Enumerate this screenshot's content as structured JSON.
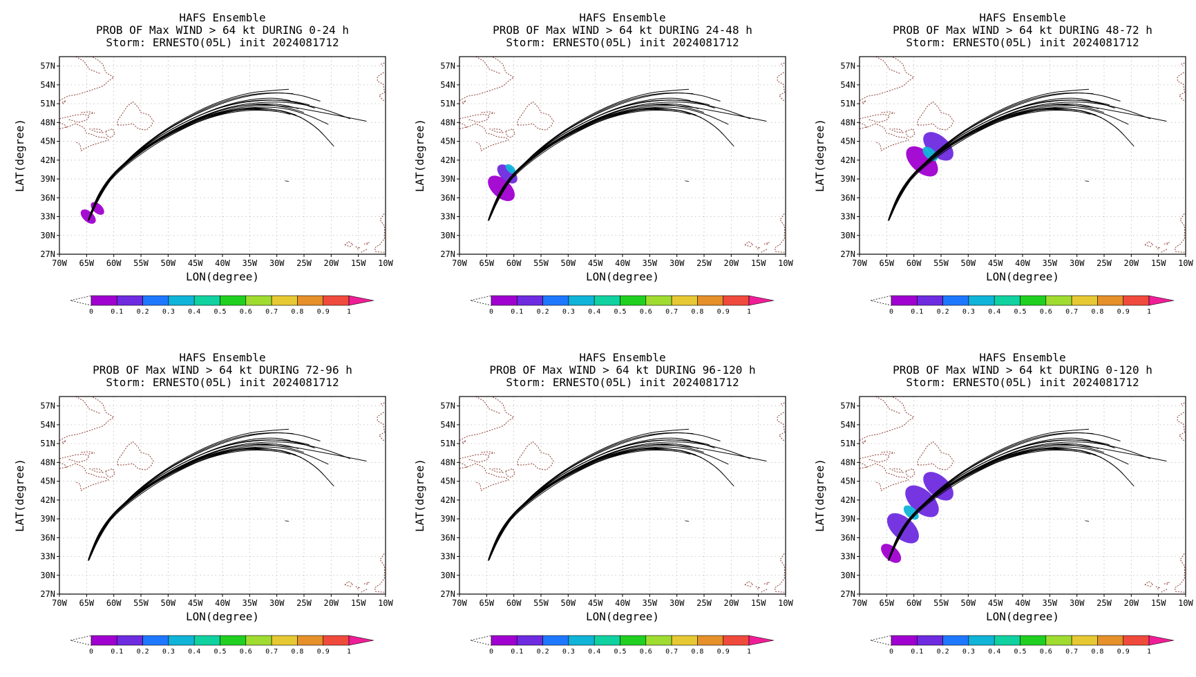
{
  "figure": {
    "ensemble_title": "HAFS Ensemble",
    "storm_line": "Storm: ERNESTO(05L) init 2024081712",
    "xlabel": "LON(degree)",
    "ylabel": "LAT(degree)",
    "lon_ticks": [
      "70W",
      "65W",
      "60W",
      "55W",
      "50W",
      "45W",
      "40W",
      "35W",
      "30W",
      "25W",
      "20W",
      "15W",
      "10W"
    ],
    "lat_ticks": [
      "27N",
      "30N",
      "33N",
      "36N",
      "39N",
      "42N",
      "45N",
      "48N",
      "51N",
      "54N",
      "57N"
    ],
    "colorbar": {
      "labels": [
        "0",
        "0.1",
        "0.2",
        "0.3",
        "0.4",
        "0.5",
        "0.6",
        "0.7",
        "0.8",
        "0.9",
        "1"
      ],
      "colors": [
        "#a000d0",
        "#6e2be0",
        "#1e78ff",
        "#10b4d8",
        "#10d2a0",
        "#20d020",
        "#a0dc30",
        "#e6c832",
        "#e6902a",
        "#f04a3c",
        "#f01e96"
      ]
    },
    "coastline_color": "#8b3a2e",
    "track_color": "#000000"
  },
  "panels": [
    {
      "id": "p0-24",
      "line2": "PROB OF Max WIND > 64 kt DURING  0-24 h",
      "prob_clusters": [
        {
          "lon": -64.7,
          "lat": 33.0,
          "value": 0.05,
          "r": 0.9
        },
        {
          "lon": -63.0,
          "lat": 34.3,
          "value": 0.05,
          "r": 0.8
        }
      ]
    },
    {
      "id": "p24-48",
      "line2": "PROB OF Max WIND > 64 kt DURING 24-48 h",
      "prob_clusters": [
        {
          "lon": -62.3,
          "lat": 37.5,
          "value": 0.05,
          "r": 1.6
        },
        {
          "lon": -61.2,
          "lat": 39.8,
          "value": 0.15,
          "r": 1.2
        },
        {
          "lon": -60.6,
          "lat": 40.6,
          "value": 0.35,
          "r": 0.6
        }
      ]
    },
    {
      "id": "p48-72",
      "line2": "PROB OF Max WIND > 64 kt DURING 48-72 h",
      "prob_clusters": [
        {
          "lon": -58.5,
          "lat": 41.8,
          "value": 0.05,
          "r": 1.9
        },
        {
          "lon": -55.5,
          "lat": 44.2,
          "value": 0.1,
          "r": 1.8
        },
        {
          "lon": -57.0,
          "lat": 43.0,
          "value": 0.35,
          "r": 0.9
        }
      ]
    },
    {
      "id": "p72-96",
      "line2": "PROB OF Max WIND > 64 kt DURING 72-96 h",
      "prob_clusters": []
    },
    {
      "id": "p96-120",
      "line2": "PROB OF Max WIND > 64 kt DURING 96-120 h",
      "prob_clusters": []
    },
    {
      "id": "p0-120",
      "line2": "PROB OF Max WIND > 64 kt DURING 0-120 h",
      "prob_clusters": [
        {
          "lon": -64.2,
          "lat": 33.5,
          "value": 0.05,
          "r": 1.2
        },
        {
          "lon": -62.0,
          "lat": 37.5,
          "value": 0.1,
          "r": 1.9
        },
        {
          "lon": -58.5,
          "lat": 41.8,
          "value": 0.15,
          "r": 2.0
        },
        {
          "lon": -55.5,
          "lat": 44.2,
          "value": 0.1,
          "r": 1.8
        },
        {
          "lon": -60.5,
          "lat": 40.0,
          "value": 0.35,
          "r": 0.9
        }
      ]
    }
  ],
  "track_ensemble": {
    "members": [
      {
        "lon": [
          -64.6,
          -63.8,
          -62.4,
          -60.0,
          -56.0,
          -51.0,
          -45.0,
          -39.0,
          -33.0,
          -27.8,
          -23.0,
          -19.5
        ],
        "lat": [
          32.4,
          34.3,
          36.8,
          39.5,
          42.4,
          45.3,
          48.0,
          49.8,
          50.3,
          49.8,
          47.6,
          44.2
        ]
      },
      {
        "lon": [
          -64.6,
          -63.9,
          -62.6,
          -60.3,
          -56.4,
          -51.4,
          -45.5,
          -39.5,
          -33.5,
          -28.0,
          -21.0,
          -13.5
        ],
        "lat": [
          32.4,
          34.4,
          37.0,
          39.8,
          42.8,
          45.7,
          48.3,
          50.0,
          50.8,
          50.6,
          49.5,
          48.2
        ]
      },
      {
        "lon": [
          -64.5,
          -63.6,
          -62.0,
          -59.5,
          -55.5,
          -50.5,
          -44.5,
          -38.5,
          -32.5,
          -27.0,
          -21.5,
          -16.5
        ],
        "lat": [
          32.6,
          34.6,
          37.3,
          40.2,
          43.2,
          46.2,
          48.8,
          50.6,
          51.3,
          51.2,
          50.2,
          48.6
        ]
      },
      {
        "lon": [
          -64.7,
          -64.0,
          -62.8,
          -60.6,
          -56.8,
          -52.0,
          -46.0,
          -40.0,
          -34.0,
          -29.0,
          -24.5,
          -20.5
        ],
        "lat": [
          32.5,
          34.2,
          36.6,
          39.3,
          42.2,
          45.2,
          47.9,
          49.8,
          50.5,
          50.4,
          49.3,
          47.7
        ]
      },
      {
        "lon": [
          -64.6,
          -63.7,
          -62.2,
          -59.8,
          -55.8,
          -50.8,
          -44.8,
          -38.8,
          -33.0,
          -28.5,
          -25.0
        ],
        "lat": [
          32.5,
          34.5,
          37.2,
          40.0,
          43.0,
          46.0,
          48.6,
          50.4,
          51.0,
          50.5,
          49.6
        ]
      },
      {
        "lon": [
          -64.5,
          -63.5,
          -61.8,
          -59.2,
          -55.0,
          -49.8,
          -43.5,
          -37.5,
          -31.5,
          -26.5,
          -23.0
        ],
        "lat": [
          32.6,
          34.8,
          37.6,
          40.6,
          43.8,
          46.8,
          49.5,
          51.2,
          51.7,
          51.3,
          50.3
        ]
      },
      {
        "lon": [
          -64.6,
          -63.8,
          -62.5,
          -60.2,
          -56.3,
          -51.5,
          -45.5,
          -39.5,
          -34.0,
          -29.5,
          -25.5
        ],
        "lat": [
          32.4,
          34.4,
          36.9,
          39.7,
          42.7,
          45.6,
          48.2,
          49.9,
          50.4,
          50.0,
          48.8
        ]
      },
      {
        "lon": [
          -64.7,
          -64.0,
          -62.9,
          -60.8,
          -57.2,
          -52.5,
          -46.5,
          -40.5,
          -35.0,
          -30.0,
          -26.5
        ],
        "lat": [
          32.3,
          34.0,
          36.4,
          39.0,
          41.8,
          44.8,
          47.6,
          49.5,
          50.3,
          50.1,
          49.2
        ]
      },
      {
        "lon": [
          -64.5,
          -63.4,
          -61.6,
          -58.8,
          -54.5,
          -49.0,
          -42.5,
          -36.5,
          -31.0,
          -27.5
        ],
        "lat": [
          32.7,
          35.0,
          37.9,
          41.0,
          44.2,
          47.2,
          49.9,
          51.5,
          52.0,
          51.5
        ]
      },
      {
        "lon": [
          -64.4,
          -63.3,
          -61.4,
          -58.5,
          -54.0,
          -48.5,
          -42.0,
          -36.0,
          -30.5,
          -26.0,
          -22.0
        ],
        "lat": [
          32.8,
          35.1,
          38.1,
          41.3,
          44.6,
          47.8,
          50.5,
          52.2,
          52.8,
          52.5,
          51.4
        ]
      },
      {
        "lon": [
          -64.3,
          -63.1,
          -61.0,
          -58.0,
          -53.5,
          -48.0,
          -41.5,
          -35.5,
          -31.0,
          -27.8
        ],
        "lat": [
          32.9,
          35.3,
          38.4,
          41.7,
          45.1,
          48.3,
          51.1,
          52.7,
          53.1,
          53.3
        ]
      },
      {
        "lon": [
          -64.6,
          -63.9,
          -62.7,
          -60.4,
          -56.5,
          -51.8,
          -46.0,
          -40.0,
          -34.5,
          -30.0
        ],
        "lat": [
          32.4,
          34.3,
          36.8,
          39.5,
          42.5,
          45.4,
          48.0,
          49.7,
          50.2,
          49.8
        ]
      },
      {
        "lon": [
          -64.5,
          -63.6,
          -62.1,
          -59.6,
          -55.6,
          -50.6,
          -44.6,
          -38.6,
          -32.8,
          -27.5,
          -24.0
        ],
        "lat": [
          32.5,
          34.6,
          37.4,
          40.3,
          43.4,
          46.4,
          49.1,
          50.9,
          51.6,
          51.5,
          50.8
        ]
      },
      {
        "lon": [
          -64.6,
          -63.7,
          -62.3,
          -59.9,
          -55.9,
          -51.0,
          -45.0,
          -39.2,
          -33.6,
          -29.0,
          -26.0
        ],
        "lat": [
          32.5,
          34.5,
          37.1,
          39.9,
          42.9,
          45.9,
          48.5,
          50.3,
          51.0,
          50.9,
          50.2
        ]
      },
      {
        "lon": [
          -64.4,
          -63.2,
          -61.2,
          -58.2,
          -53.8,
          -48.2,
          -41.8,
          -35.8,
          -30.8,
          -27.0
        ],
        "lat": [
          32.8,
          35.2,
          38.2,
          41.5,
          44.9,
          48.0,
          50.8,
          52.4,
          52.8,
          52.6
        ]
      },
      {
        "lon": [
          -64.7,
          -64.1,
          -63.0,
          -61.0,
          -57.5,
          -53.0,
          -47.0,
          -41.0,
          -35.5,
          -30.5,
          -27.5
        ],
        "lat": [
          32.3,
          33.9,
          36.2,
          38.8,
          41.6,
          44.5,
          47.3,
          49.2,
          50.0,
          49.9,
          49.3
        ]
      }
    ]
  }
}
